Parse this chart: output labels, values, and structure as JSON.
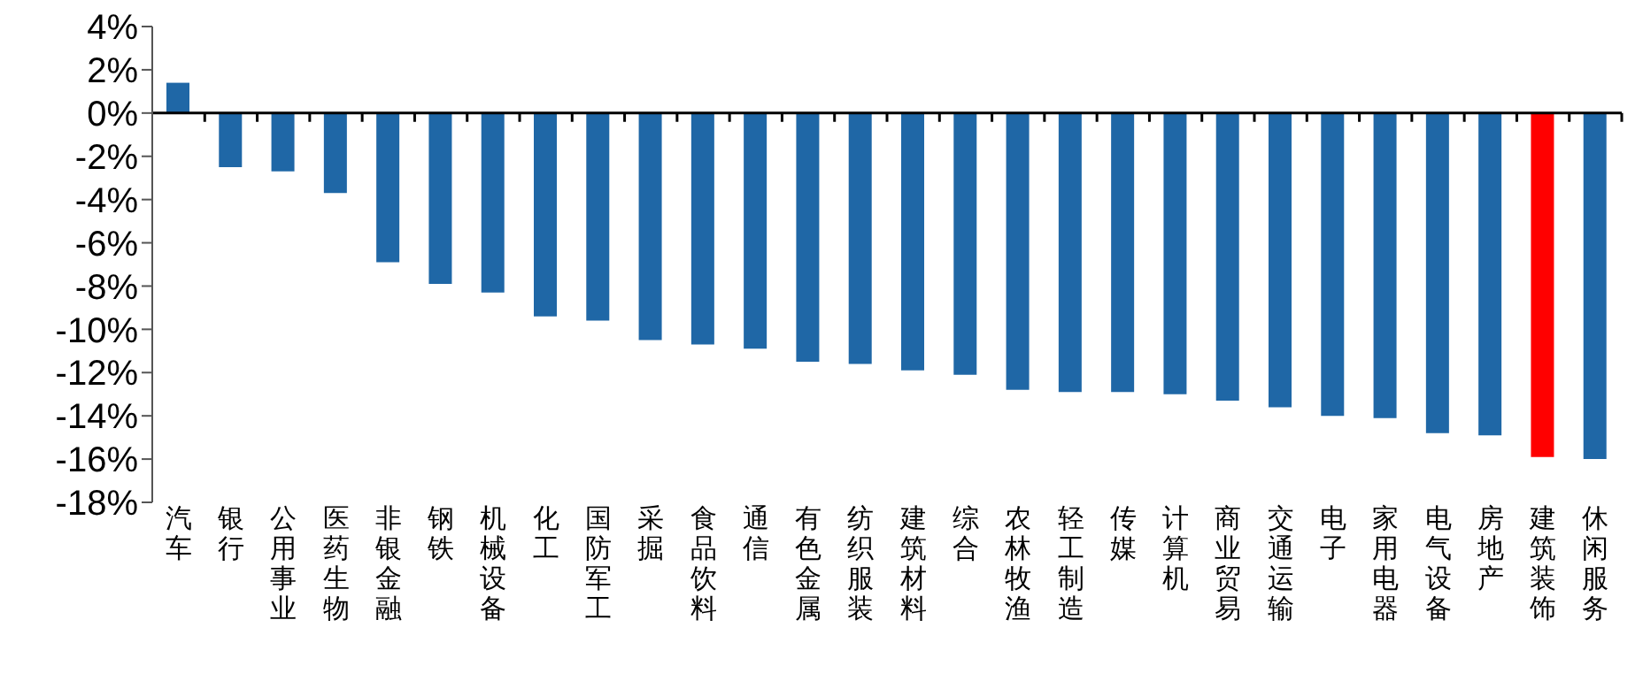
{
  "chart_data": {
    "type": "bar",
    "categories": [
      "汽车",
      "银行",
      "公用事业",
      "医药生物",
      "非银金融",
      "钢铁",
      "机械设备",
      "化工",
      "国防军工",
      "采掘",
      "食品饮料",
      "通信",
      "有色金属",
      "纺织服装",
      "建筑材料",
      "综合",
      "农林牧渔",
      "轻工制造",
      "传媒",
      "计算机",
      "商业贸易",
      "交通运输",
      "电子",
      "家用电器",
      "电气设备",
      "房地产",
      "建筑装饰",
      "休闲服务"
    ],
    "values": [
      1.4,
      -2.5,
      -2.7,
      -3.7,
      -6.9,
      -7.9,
      -8.3,
      -9.4,
      -9.6,
      -10.5,
      -10.7,
      -10.9,
      -11.5,
      -11.6,
      -11.9,
      -12.1,
      -12.8,
      -12.9,
      -12.9,
      -13.0,
      -13.3,
      -13.6,
      -14.0,
      -14.1,
      -14.8,
      -14.9,
      -15.9,
      -16.0
    ],
    "colors": [
      "#1f67a6",
      "#1f67a6",
      "#1f67a6",
      "#1f67a6",
      "#1f67a6",
      "#1f67a6",
      "#1f67a6",
      "#1f67a6",
      "#1f67a6",
      "#1f67a6",
      "#1f67a6",
      "#1f67a6",
      "#1f67a6",
      "#1f67a6",
      "#1f67a6",
      "#1f67a6",
      "#1f67a6",
      "#1f67a6",
      "#1f67a6",
      "#1f67a6",
      "#1f67a6",
      "#1f67a6",
      "#1f67a6",
      "#1f67a6",
      "#1f67a6",
      "#1f67a6",
      "#ff0000",
      "#1f67a6"
    ],
    "ylim": [
      -18,
      4
    ],
    "yticks": [
      {
        "value": 4,
        "label": "4%"
      },
      {
        "value": 2,
        "label": "2%"
      },
      {
        "value": 0,
        "label": "0%"
      },
      {
        "value": -2,
        "label": "-2%"
      },
      {
        "value": -4,
        "label": "-4%"
      },
      {
        "value": -6,
        "label": "-6%"
      },
      {
        "value": -8,
        "label": "-8%"
      },
      {
        "value": -10,
        "label": "-10%"
      },
      {
        "value": -12,
        "label": "-12%"
      },
      {
        "value": -14,
        "label": "-14%"
      },
      {
        "value": -16,
        "label": "-16%"
      },
      {
        "value": -18,
        "label": "-18%"
      }
    ],
    "ref_lines": [
      {
        "axis": "y",
        "value": 0,
        "color": "#000000"
      }
    ],
    "grid": false,
    "legend": false
  }
}
